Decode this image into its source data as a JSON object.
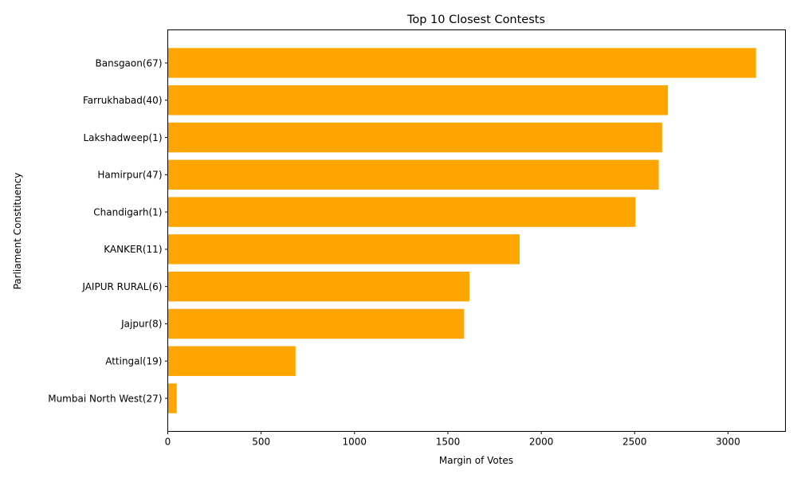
{
  "chart_data": {
    "type": "bar",
    "orientation": "horizontal",
    "title": "Top 10 Closest Contests",
    "xlabel": "Margin of Votes",
    "ylabel": "Parliament Constituency",
    "categories": [
      "Bansgaon(67)",
      "Farrukhabad(40)",
      "Lakshadweep(1)",
      "Hamirpur(47)",
      "Chandigarh(1)",
      "KANKER(11)",
      "JAIPUR RURAL(6)",
      "Jajpur(8)",
      "Attingal(19)",
      "Mumbai North West(27)"
    ],
    "values": [
      3150,
      2678,
      2647,
      2629,
      2504,
      1884,
      1615,
      1587,
      684,
      48
    ],
    "xlim": [
      0,
      3307.5
    ],
    "xticks": [
      "0",
      "500",
      "1000",
      "1500",
      "2000",
      "2500",
      "3000"
    ],
    "bar_color": "#FFA500",
    "grid": false,
    "legend": "none"
  }
}
